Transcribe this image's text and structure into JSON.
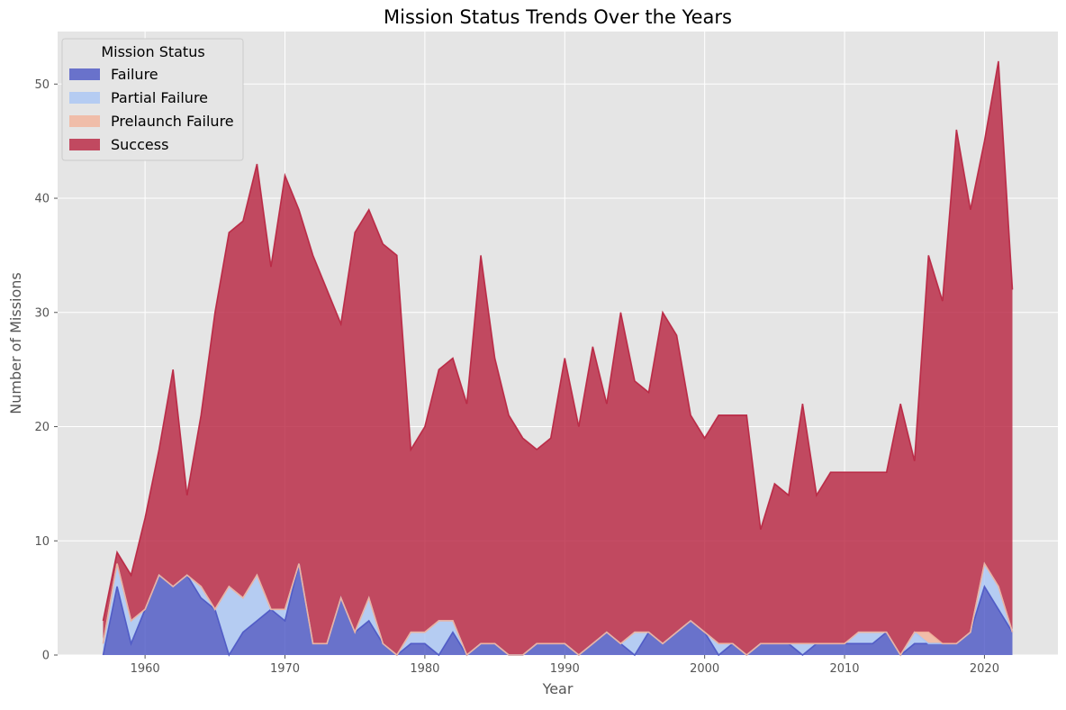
{
  "chart_data": {
    "type": "area",
    "stacked": true,
    "title": "Mission Status Trends Over the Years",
    "xlabel": "Year",
    "ylabel": "Number of Missions",
    "xlim": [
      1953.75,
      2025.25
    ],
    "ylim": [
      0,
      54.6
    ],
    "x_ticks": [
      1960,
      1970,
      1980,
      1990,
      2000,
      2010,
      2020
    ],
    "y_ticks": [
      0,
      10,
      20,
      30,
      40,
      50
    ],
    "grid": true,
    "legend": {
      "title": "Mission Status",
      "position": "top-left"
    },
    "x": [
      1957,
      1958,
      1959,
      1960,
      1961,
      1962,
      1963,
      1964,
      1965,
      1966,
      1967,
      1968,
      1969,
      1970,
      1971,
      1972,
      1973,
      1974,
      1975,
      1976,
      1977,
      1978,
      1979,
      1980,
      1981,
      1982,
      1983,
      1984,
      1985,
      1986,
      1987,
      1988,
      1989,
      1990,
      1991,
      1992,
      1993,
      1994,
      1995,
      1996,
      1997,
      1998,
      1999,
      2000,
      2001,
      2002,
      2003,
      2004,
      2005,
      2006,
      2007,
      2008,
      2009,
      2010,
      2011,
      2012,
      2013,
      2014,
      2015,
      2016,
      2017,
      2018,
      2019,
      2020,
      2021,
      2022
    ],
    "series": [
      {
        "name": "Failure",
        "color": "#4a55c4",
        "values": [
          0,
          6,
          1,
          4,
          7,
          6,
          7,
          5,
          4,
          0,
          2,
          3,
          4,
          3,
          8,
          1,
          1,
          5,
          2,
          3,
          1,
          0,
          1,
          1,
          0,
          2,
          0,
          1,
          1,
          0,
          0,
          1,
          1,
          1,
          0,
          1,
          2,
          1,
          0,
          2,
          1,
          2,
          3,
          2,
          0,
          1,
          0,
          1,
          1,
          1,
          0,
          1,
          1,
          1,
          1,
          1,
          2,
          0,
          1,
          1,
          1,
          1,
          2,
          6,
          4,
          2
        ]
      },
      {
        "name": "Partial Failure",
        "color": "#a9c5f5",
        "values": [
          1,
          2,
          2,
          0,
          0,
          0,
          0,
          1,
          0,
          6,
          3,
          4,
          0,
          1,
          0,
          0,
          0,
          0,
          0,
          2,
          0,
          0,
          1,
          1,
          3,
          1,
          0,
          0,
          0,
          0,
          0,
          0,
          0,
          0,
          0,
          0,
          0,
          0,
          2,
          0,
          0,
          0,
          0,
          0,
          1,
          0,
          0,
          0,
          0,
          0,
          1,
          0,
          0,
          0,
          1,
          1,
          0,
          0,
          1,
          0,
          0,
          0,
          0,
          2,
          2,
          0
        ]
      },
      {
        "name": "Prelaunch Failure",
        "color": "#f2b39a",
        "values": [
          0,
          0,
          0,
          0,
          0,
          0,
          0,
          0,
          0,
          0,
          0,
          0,
          0,
          0,
          0,
          0,
          0,
          0,
          0,
          0,
          0,
          0,
          0,
          0,
          0,
          0,
          0,
          0,
          0,
          0,
          0,
          0,
          0,
          0,
          0,
          0,
          0,
          0,
          0,
          0,
          0,
          0,
          0,
          0,
          0,
          0,
          0,
          0,
          0,
          0,
          0,
          0,
          0,
          0,
          0,
          0,
          0,
          0,
          0,
          1,
          0,
          0,
          0,
          0,
          0,
          0
        ]
      },
      {
        "name": "Success",
        "color": "#b8223f",
        "values": [
          2,
          1,
          4,
          8,
          11,
          19,
          7,
          15,
          26,
          31,
          33,
          36,
          30,
          38,
          31,
          34,
          31,
          24,
          35,
          34,
          35,
          35,
          16,
          18,
          22,
          23,
          22,
          34,
          25,
          21,
          19,
          17,
          18,
          25,
          20,
          26,
          20,
          29,
          22,
          21,
          29,
          26,
          18,
          17,
          20,
          20,
          21,
          10,
          14,
          13,
          21,
          13,
          15,
          15,
          14,
          14,
          14,
          22,
          15,
          33,
          30,
          45,
          37,
          37,
          46,
          30
        ]
      }
    ]
  }
}
